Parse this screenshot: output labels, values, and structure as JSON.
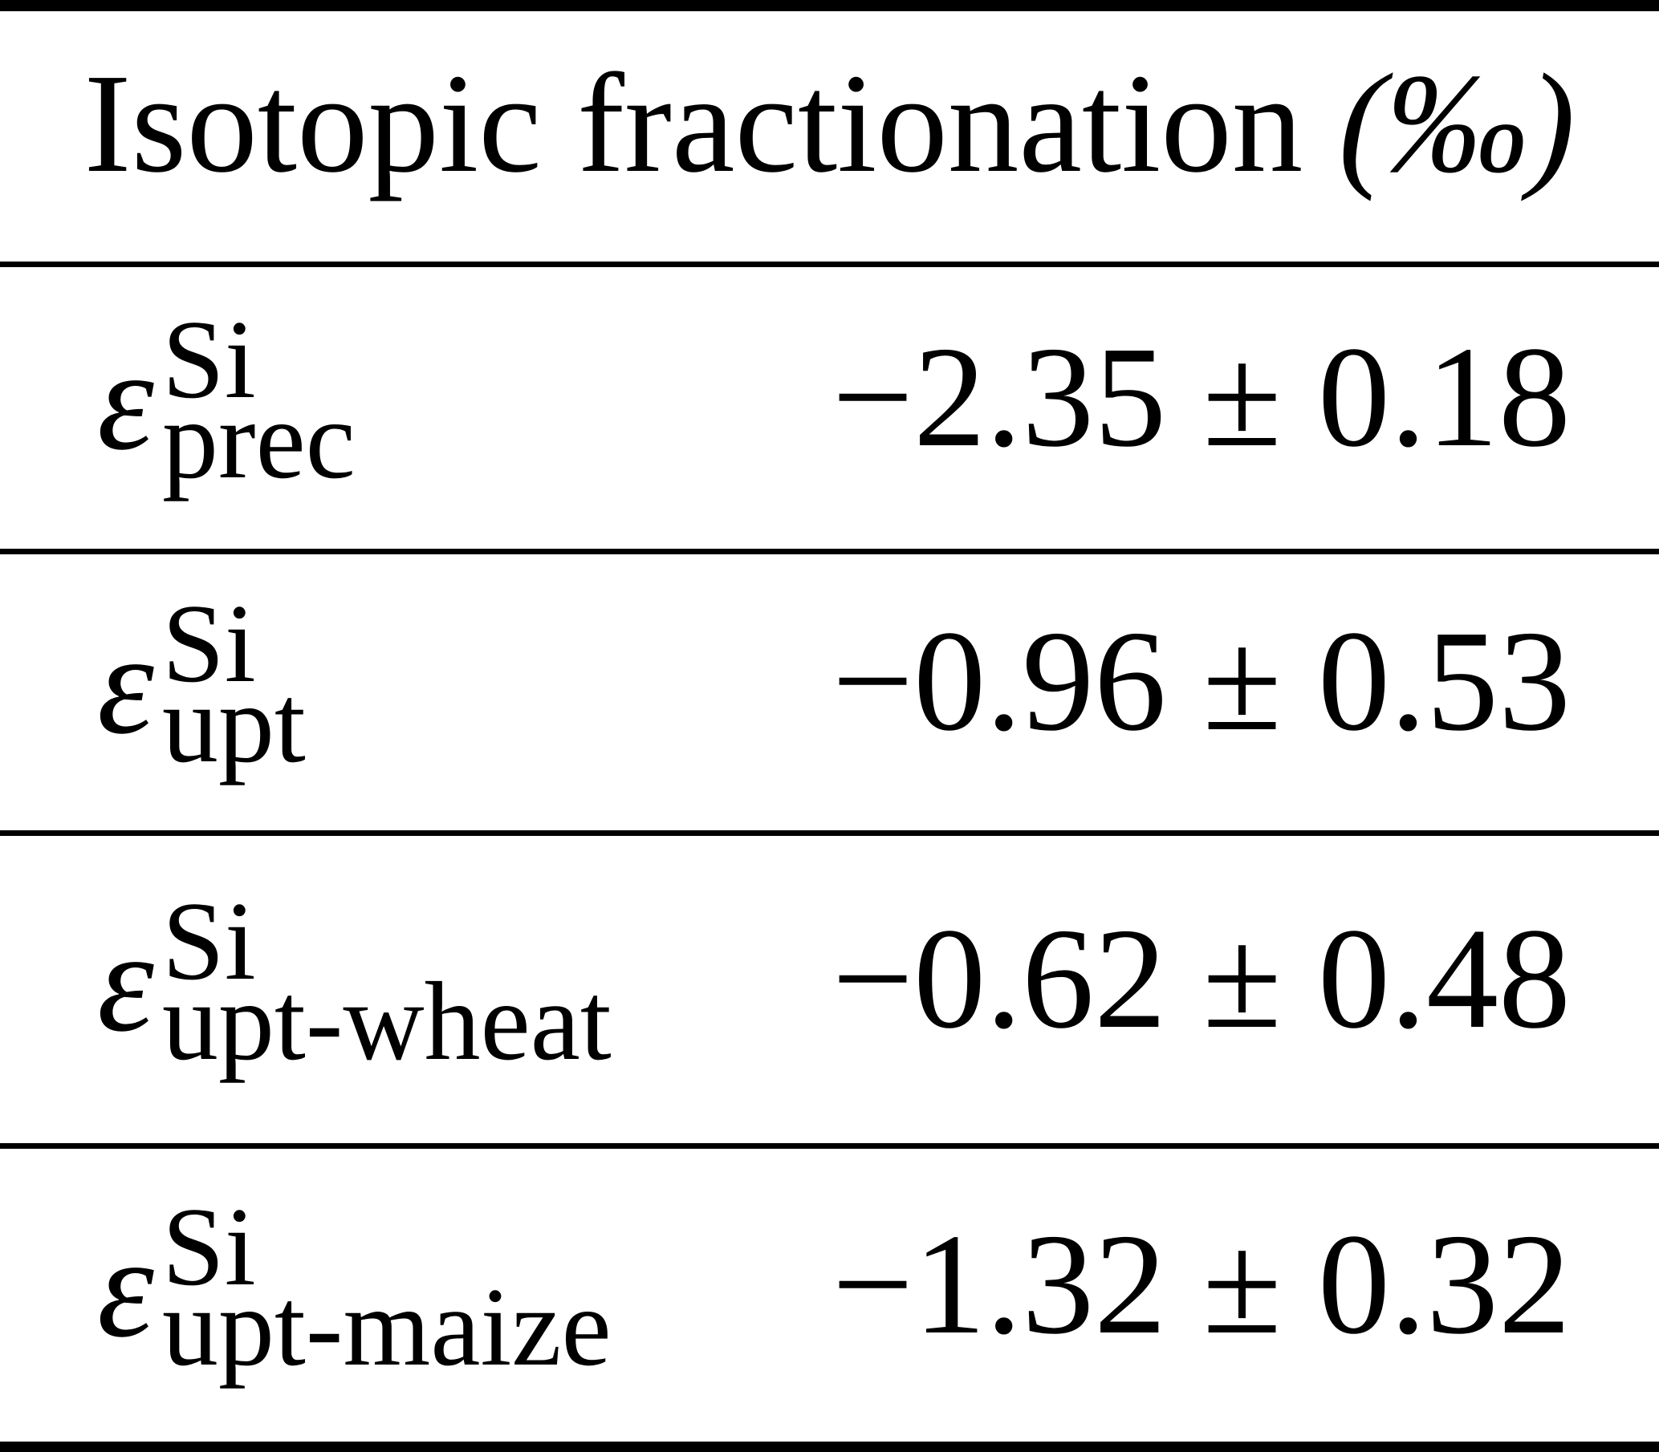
{
  "colors": {
    "background": "#ffffff",
    "text": "#000000",
    "rule": "#000000"
  },
  "table": {
    "header": {
      "title": "Isotopic fractionation",
      "unit": "(‰)"
    },
    "rows": [
      {
        "symbol": "ε",
        "sup": "Si",
        "sub": "prec",
        "value": "−2.35 ± 0.18"
      },
      {
        "symbol": "ε",
        "sup": "Si",
        "sub": "upt",
        "value": "−0.96 ± 0.53"
      },
      {
        "symbol": "ε",
        "sup": "Si",
        "sub": "upt-wheat",
        "value": "−0.62 ± 0.48"
      },
      {
        "symbol": "ε",
        "sup": "Si",
        "sub": "upt-maize",
        "value": "−1.32 ± 0.32"
      }
    ]
  }
}
